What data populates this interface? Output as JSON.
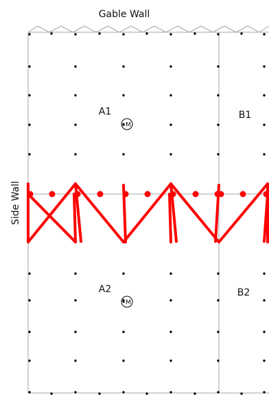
{
  "labels": {
    "gable_wall": "Gable Wall",
    "side_wall": "Side Wall",
    "bays": {
      "a1": "A1",
      "b1": "B1",
      "a2": "A2",
      "b2": "B2"
    },
    "marker": "M"
  },
  "colors": {
    "outline": "#a6a6a6",
    "dots": "#000000",
    "bracing": "#ff0000",
    "text": "#111111"
  }
}
